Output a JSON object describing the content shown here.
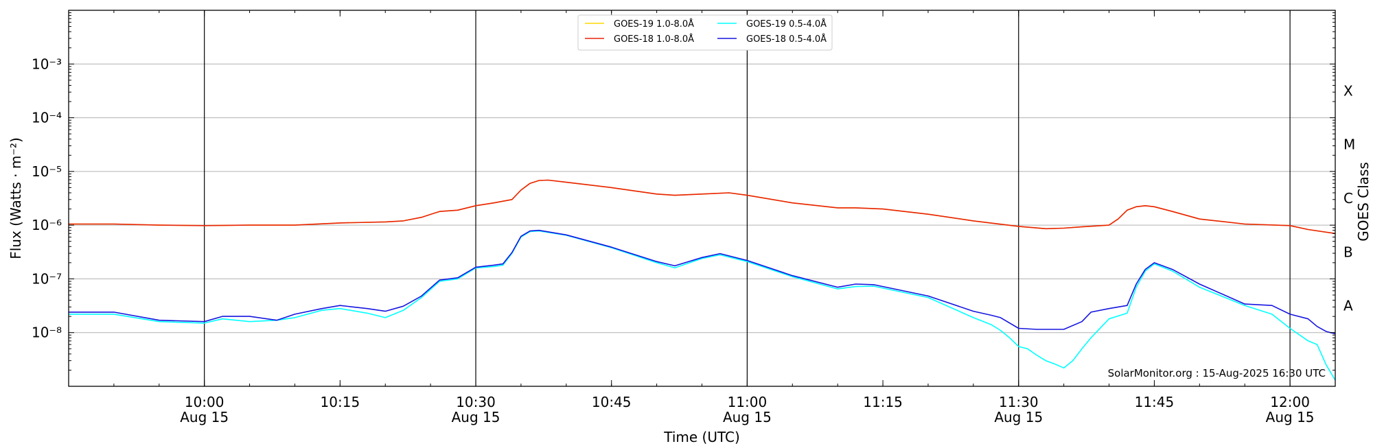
{
  "chart_data": {
    "type": "line",
    "xlabel": "Time (UTC)",
    "ylabel": "Flux (Watts · m⁻²)",
    "y2label": "GOES Class",
    "yscale": "log",
    "ylim": [
      1e-09,
      0.01
    ],
    "xlim": [
      "2025-08-15T09:45",
      "2025-08-15T12:05"
    ],
    "grid": "horizontal at decades, vertical at half-hours",
    "legend_position": "top-center",
    "annotation": "SolarMonitor.org : 15-Aug-2025 16:30 UTC",
    "xticks": [
      {
        "time": "2025-08-15T10:00",
        "label": "10:00",
        "sub": "Aug 15"
      },
      {
        "time": "2025-08-15T10:15",
        "label": "10:15",
        "sub": ""
      },
      {
        "time": "2025-08-15T10:30",
        "label": "10:30",
        "sub": "Aug 15"
      },
      {
        "time": "2025-08-15T10:45",
        "label": "10:45",
        "sub": ""
      },
      {
        "time": "2025-08-15T11:00",
        "label": "11:00",
        "sub": "Aug 15"
      },
      {
        "time": "2025-08-15T11:15",
        "label": "11:15",
        "sub": ""
      },
      {
        "time": "2025-08-15T11:30",
        "label": "11:30",
        "sub": "Aug 15"
      },
      {
        "time": "2025-08-15T11:45",
        "label": "11:45",
        "sub": ""
      },
      {
        "time": "2025-08-15T12:00",
        "label": "12:00",
        "sub": "Aug 15"
      }
    ],
    "yticks": [
      {
        "value": 1e-08,
        "label": "10⁻⁸"
      },
      {
        "value": 1e-07,
        "label": "10⁻⁷"
      },
      {
        "value": 1e-06,
        "label": "10⁻⁶"
      },
      {
        "value": 1e-05,
        "label": "10⁻⁵"
      },
      {
        "value": 0.0001,
        "label": "10⁻⁴"
      },
      {
        "value": 0.001,
        "label": "10⁻³"
      }
    ],
    "goes_classes": [
      {
        "label": "A",
        "value": 3.16e-08
      },
      {
        "label": "B",
        "value": 3.16e-07
      },
      {
        "label": "C",
        "value": 3.16e-06
      },
      {
        "label": "M",
        "value": 3.16e-05
      },
      {
        "label": "X",
        "value": 0.000316
      }
    ],
    "series": [
      {
        "name": "GOES-19 1.0-8.0Å",
        "color": "#ffd700",
        "x": [
          "09:45",
          "09:50",
          "09:55",
          "10:00",
          "10:05",
          "10:10",
          "10:15",
          "10:20",
          "10:22",
          "10:24",
          "10:26",
          "10:28",
          "10:30",
          "10:32",
          "10:34",
          "10:35",
          "10:36",
          "10:37",
          "10:38",
          "10:40",
          "10:45",
          "10:50",
          "10:52",
          "10:55",
          "10:58",
          "11:00",
          "11:05",
          "11:10",
          "11:12",
          "11:15",
          "11:20",
          "11:25",
          "11:30",
          "11:33",
          "11:35",
          "11:37",
          "11:40",
          "11:41",
          "11:42",
          "11:43",
          "11:44",
          "11:45",
          "11:47",
          "11:50",
          "11:55",
          "12:00",
          "12:02",
          "12:05"
        ],
        "y": [
          1.05e-06,
          1.05e-06,
          1e-06,
          9.8e-07,
          1e-06,
          1e-06,
          1.1e-06,
          1.15e-06,
          1.2e-06,
          1.4e-06,
          1.8e-06,
          1.9e-06,
          2.3e-06,
          2.6e-06,
          3e-06,
          4.5e-06,
          6e-06,
          6.8e-06,
          6.9e-06,
          6.3e-06,
          5e-06,
          3.8e-06,
          3.6e-06,
          3.8e-06,
          4e-06,
          3.6e-06,
          2.6e-06,
          2.1e-06,
          2.1e-06,
          2e-06,
          1.6e-06,
          1.2e-06,
          9.5e-07,
          8.6e-07,
          8.8e-07,
          9.3e-07,
          1e-06,
          1.3e-06,
          1.9e-06,
          2.2e-06,
          2.3e-06,
          2.2e-06,
          1.8e-06,
          1.3e-06,
          1.05e-06,
          9.8e-07,
          8.3e-07,
          7e-07
        ]
      },
      {
        "name": "GOES-18 1.0-8.0Å",
        "color": "#e8220a",
        "x": [
          "09:45",
          "09:50",
          "09:55",
          "10:00",
          "10:05",
          "10:10",
          "10:15",
          "10:20",
          "10:22",
          "10:24",
          "10:26",
          "10:28",
          "10:30",
          "10:32",
          "10:34",
          "10:35",
          "10:36",
          "10:37",
          "10:38",
          "10:40",
          "10:45",
          "10:50",
          "10:52",
          "10:55",
          "10:58",
          "11:00",
          "11:05",
          "11:10",
          "11:12",
          "11:15",
          "11:20",
          "11:25",
          "11:30",
          "11:33",
          "11:35",
          "11:37",
          "11:40",
          "11:41",
          "11:42",
          "11:43",
          "11:44",
          "11:45",
          "11:47",
          "11:50",
          "11:55",
          "12:00",
          "12:02",
          "12:05"
        ],
        "y": [
          1.05e-06,
          1.05e-06,
          1e-06,
          9.8e-07,
          1e-06,
          1e-06,
          1.1e-06,
          1.15e-06,
          1.2e-06,
          1.4e-06,
          1.8e-06,
          1.9e-06,
          2.3e-06,
          2.6e-06,
          3e-06,
          4.5e-06,
          6e-06,
          6.8e-06,
          6.9e-06,
          6.3e-06,
          5e-06,
          3.8e-06,
          3.6e-06,
          3.8e-06,
          4e-06,
          3.6e-06,
          2.6e-06,
          2.1e-06,
          2.1e-06,
          2e-06,
          1.6e-06,
          1.2e-06,
          9.5e-07,
          8.6e-07,
          8.8e-07,
          9.3e-07,
          1e-06,
          1.3e-06,
          1.9e-06,
          2.2e-06,
          2.3e-06,
          2.2e-06,
          1.8e-06,
          1.3e-06,
          1.05e-06,
          9.8e-07,
          8.3e-07,
          7e-07
        ]
      },
      {
        "name": "GOES-19 0.5-4.0Å",
        "color": "#00ffff",
        "x": [
          "09:45",
          "09:50",
          "09:55",
          "10:00",
          "10:02",
          "10:05",
          "10:08",
          "10:10",
          "10:13",
          "10:15",
          "10:18",
          "10:20",
          "10:22",
          "10:24",
          "10:26",
          "10:28",
          "10:30",
          "10:32",
          "10:33",
          "10:34",
          "10:35",
          "10:36",
          "10:37",
          "10:40",
          "10:45",
          "10:50",
          "10:52",
          "10:55",
          "10:57",
          "11:00",
          "11:05",
          "11:10",
          "11:12",
          "11:14",
          "11:20",
          "11:25",
          "11:27",
          "11:28",
          "11:29",
          "11:30",
          "11:31",
          "11:32",
          "11:33",
          "11:34",
          "11:35",
          "11:36",
          "11:37",
          "11:38",
          "11:40",
          "11:42",
          "11:43",
          "11:44",
          "11:45",
          "11:47",
          "11:50",
          "11:55",
          "11:58",
          "12:00",
          "12:02",
          "12:03",
          "12:04",
          "12:05"
        ],
        "y": [
          2.2e-08,
          2.2e-08,
          1.6e-08,
          1.5e-08,
          1.8e-08,
          1.6e-08,
          1.7e-08,
          1.9e-08,
          2.6e-08,
          2.8e-08,
          2.3e-08,
          1.9e-08,
          2.6e-08,
          4.5e-08,
          9e-08,
          1e-07,
          1.6e-07,
          1.7e-07,
          1.8e-07,
          3e-07,
          6e-07,
          7.6e-07,
          7.8e-07,
          6.5e-07,
          3.8e-07,
          2e-07,
          1.6e-07,
          2.4e-07,
          2.8e-07,
          2.1e-07,
          1.1e-07,
          6.5e-08,
          7.2e-08,
          7.3e-08,
          4.5e-08,
          1.9e-08,
          1.4e-08,
          1.1e-08,
          8e-09,
          5.5e-09,
          5e-09,
          3.8e-09,
          3e-09,
          2.6e-09,
          2.2e-09,
          3e-09,
          5e-09,
          8e-09,
          1.8e-08,
          2.3e-08,
          7e-08,
          1.4e-07,
          1.9e-07,
          1.4e-07,
          7e-08,
          3.2e-08,
          2.2e-08,
          1.2e-08,
          7e-09,
          6e-09,
          2.5e-09,
          1.3e-09
        ]
      },
      {
        "name": "GOES-18 0.5-4.0Å",
        "color": "#1515e0",
        "x": [
          "09:45",
          "09:50",
          "09:55",
          "10:00",
          "10:02",
          "10:05",
          "10:08",
          "10:10",
          "10:13",
          "10:15",
          "10:18",
          "10:20",
          "10:22",
          "10:24",
          "10:26",
          "10:28",
          "10:30",
          "10:32",
          "10:33",
          "10:34",
          "10:35",
          "10:36",
          "10:37",
          "10:40",
          "10:45",
          "10:50",
          "10:52",
          "10:55",
          "10:57",
          "11:00",
          "11:05",
          "11:10",
          "11:12",
          "11:14",
          "11:20",
          "11:25",
          "11:27",
          "11:28",
          "11:30",
          "11:32",
          "11:35",
          "11:37",
          "11:38",
          "11:40",
          "11:42",
          "11:43",
          "11:44",
          "11:45",
          "11:47",
          "11:50",
          "11:55",
          "11:58",
          "12:00",
          "12:02",
          "12:03",
          "12:04",
          "12:05"
        ],
        "y": [
          2.4e-08,
          2.4e-08,
          1.7e-08,
          1.6e-08,
          2e-08,
          2e-08,
          1.7e-08,
          2.2e-08,
          2.8e-08,
          3.2e-08,
          2.8e-08,
          2.5e-08,
          3.1e-08,
          4.8e-08,
          9.5e-08,
          1.05e-07,
          1.65e-07,
          1.8e-07,
          1.9e-07,
          3.1e-07,
          6.2e-07,
          7.8e-07,
          8e-07,
          6.6e-07,
          3.9e-07,
          2.1e-07,
          1.75e-07,
          2.5e-07,
          2.95e-07,
          2.2e-07,
          1.15e-07,
          7e-08,
          8e-08,
          7.8e-08,
          4.8e-08,
          2.5e-08,
          2.1e-08,
          1.9e-08,
          1.2e-08,
          1.15e-08,
          1.15e-08,
          1.6e-08,
          2.4e-08,
          2.8e-08,
          3.2e-08,
          8e-08,
          1.5e-07,
          2e-07,
          1.5e-07,
          8e-08,
          3.4e-08,
          3.2e-08,
          2.2e-08,
          1.8e-08,
          1.3e-08,
          1.05e-08,
          9.5e-09
        ]
      }
    ]
  }
}
